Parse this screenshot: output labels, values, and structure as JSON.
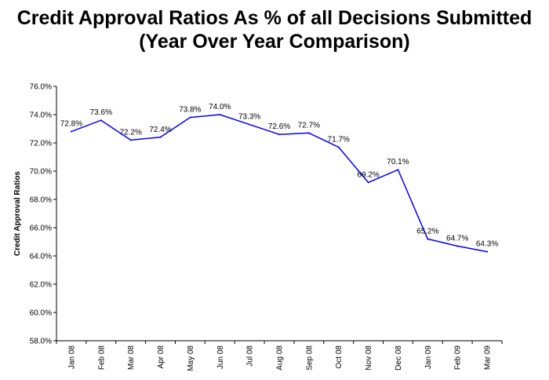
{
  "chart_data": {
    "type": "line",
    "title_lines": [
      "Credit Approval Ratios As % of all Decisions Submitted",
      "(Year Over Year Comparison)"
    ],
    "xlabel": "",
    "ylabel": "Credit Approval Ratios",
    "categories": [
      "Jan 08",
      "Feb 08",
      "Mar 08",
      "Apr 08",
      "May 08",
      "Jun 08",
      "Jul 08",
      "Aug 08",
      "Sep 08",
      "Oct 08",
      "Nov 08",
      "Dec 08",
      "Jan 09",
      "Feb 09",
      "Mar 09"
    ],
    "series": [
      {
        "values": [
          72.8,
          73.6,
          72.2,
          72.4,
          73.8,
          74.0,
          73.3,
          72.6,
          72.7,
          71.7,
          69.2,
          70.1,
          65.2,
          64.7,
          64.3
        ],
        "labels": [
          "72.8%",
          "73.6%",
          "72.2%",
          "72.4%",
          "73.8%",
          "74.0%",
          "73.3%",
          "72.6%",
          "72.7%",
          "71.7%",
          "69.2%",
          "70.1%",
          "65.2%",
          "64.7%",
          "64.3%"
        ],
        "color": "#0000ff"
      }
    ],
    "ylim": [
      58.0,
      76.0
    ],
    "yticks": [
      "58.0%",
      "60.0%",
      "62.0%",
      "64.0%",
      "66.0%",
      "68.0%",
      "70.0%",
      "72.0%",
      "74.0%",
      "76.0%"
    ],
    "grid": false,
    "legend": "none"
  }
}
